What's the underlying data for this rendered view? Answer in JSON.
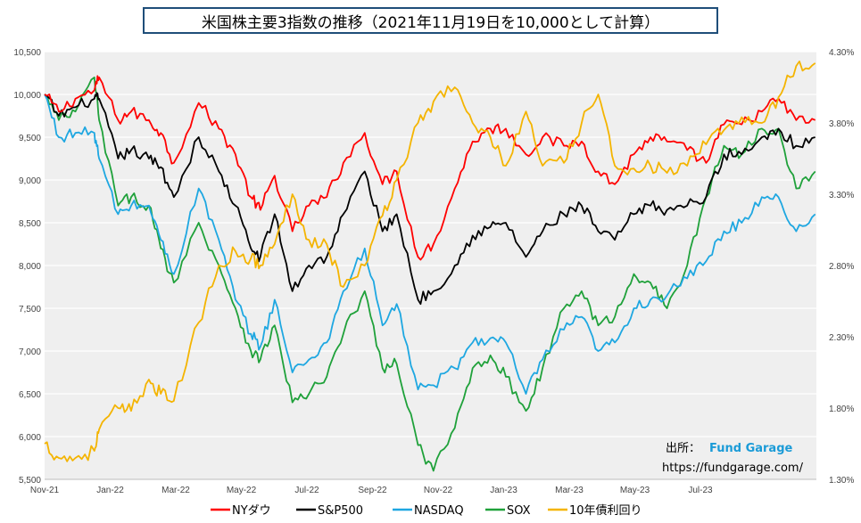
{
  "title": "米国株主要3指数の推移（2021年11月19日を10,000として計算）",
  "source": {
    "label": "出所：",
    "brand": "Fund Garage",
    "url": "https://fundgarage.com/"
  },
  "chart_data": {
    "type": "line",
    "x_tick_labels": [
      "Nov-21",
      "Jan-22",
      "Mar-22",
      "May-22",
      "Jul-22",
      "Sep-22",
      "Nov-22",
      "Jan-23",
      "Mar-23",
      "May-23",
      "Jul-23"
    ],
    "x_range": [
      "2021-11-19",
      "2023-09-01"
    ],
    "y_left": {
      "lim": [
        5500,
        10500
      ],
      "tick_labels": [
        "10,500",
        "10,000",
        "9,500",
        "9,000",
        "8,500",
        "8,000",
        "7,500",
        "7,000",
        "6,500",
        "6,000",
        "5,500"
      ]
    },
    "y_right": {
      "lim": [
        1.3,
        4.3
      ],
      "tick_labels": [
        "4.30%",
        "3.80%",
        "3.30%",
        "2.80%",
        "2.30%",
        "1.80%",
        "1.30%"
      ],
      "series": "10年債利回り"
    },
    "grid": "horizontal",
    "legend_position": "bottom",
    "series": [
      {
        "name": "NYダウ",
        "color": "#ff0000",
        "axis": "left",
        "points": [
          [
            "2021-11-19",
            10000
          ],
          [
            "2021-12-01",
            9800
          ],
          [
            "2021-12-15",
            9950
          ],
          [
            "2021-12-31",
            10050
          ],
          [
            "2022-01-04",
            10200
          ],
          [
            "2022-01-20",
            9700
          ],
          [
            "2022-01-31",
            9800
          ],
          [
            "2022-02-15",
            9700
          ],
          [
            "2022-02-25",
            9550
          ],
          [
            "2022-03-08",
            9200
          ],
          [
            "2022-03-29",
            9900
          ],
          [
            "2022-04-15",
            9600
          ],
          [
            "2022-04-29",
            9300
          ],
          [
            "2022-05-12",
            8800
          ],
          [
            "2022-05-20",
            8650
          ],
          [
            "2022-06-01",
            9050
          ],
          [
            "2022-06-16",
            8400
          ],
          [
            "2022-06-30",
            8700
          ],
          [
            "2022-07-15",
            8800
          ],
          [
            "2022-07-29",
            9200
          ],
          [
            "2022-08-16",
            9550
          ],
          [
            "2022-08-31",
            8950
          ],
          [
            "2022-09-12",
            9100
          ],
          [
            "2022-09-30",
            8100
          ],
          [
            "2022-10-13",
            8250
          ],
          [
            "2022-10-31",
            8900
          ],
          [
            "2022-11-15",
            9450
          ],
          [
            "2022-11-30",
            9600
          ],
          [
            "2022-12-13",
            9600
          ],
          [
            "2022-12-30",
            9300
          ],
          [
            "2023-01-13",
            9500
          ],
          [
            "2023-01-31",
            9400
          ],
          [
            "2023-02-15",
            9450
          ],
          [
            "2023-03-01",
            9100
          ],
          [
            "2023-03-15",
            8950
          ],
          [
            "2023-03-31",
            9300
          ],
          [
            "2023-04-14",
            9500
          ],
          [
            "2023-04-28",
            9450
          ],
          [
            "2023-05-15",
            9350
          ],
          [
            "2023-05-31",
            9200
          ],
          [
            "2023-06-15",
            9650
          ],
          [
            "2023-06-30",
            9650
          ],
          [
            "2023-07-17",
            9800
          ],
          [
            "2023-07-31",
            9950
          ],
          [
            "2023-08-15",
            9700
          ],
          [
            "2023-08-31",
            9700
          ]
        ]
      },
      {
        "name": "S&P500",
        "color": "#000000",
        "axis": "left",
        "points": [
          [
            "2021-11-19",
            10000
          ],
          [
            "2021-12-01",
            9750
          ],
          [
            "2021-12-15",
            9850
          ],
          [
            "2021-12-31",
            9950
          ],
          [
            "2022-01-04",
            9950
          ],
          [
            "2022-01-20",
            9250
          ],
          [
            "2022-01-31",
            9350
          ],
          [
            "2022-02-15",
            9250
          ],
          [
            "2022-02-25",
            9150
          ],
          [
            "2022-03-08",
            8800
          ],
          [
            "2022-03-29",
            9500
          ],
          [
            "2022-04-15",
            9100
          ],
          [
            "2022-04-29",
            8700
          ],
          [
            "2022-05-12",
            8200
          ],
          [
            "2022-05-20",
            8100
          ],
          [
            "2022-06-01",
            8600
          ],
          [
            "2022-06-16",
            7700
          ],
          [
            "2022-06-30",
            8000
          ],
          [
            "2022-07-15",
            8100
          ],
          [
            "2022-07-29",
            8600
          ],
          [
            "2022-08-16",
            9100
          ],
          [
            "2022-08-31",
            8400
          ],
          [
            "2022-09-12",
            8600
          ],
          [
            "2022-09-30",
            7600
          ],
          [
            "2022-10-13",
            7700
          ],
          [
            "2022-10-31",
            8000
          ],
          [
            "2022-11-15",
            8350
          ],
          [
            "2022-11-30",
            8450
          ],
          [
            "2022-12-13",
            8500
          ],
          [
            "2022-12-30",
            8100
          ],
          [
            "2023-01-13",
            8400
          ],
          [
            "2023-01-31",
            8600
          ],
          [
            "2023-02-15",
            8700
          ],
          [
            "2023-03-01",
            8400
          ],
          [
            "2023-03-15",
            8300
          ],
          [
            "2023-03-31",
            8600
          ],
          [
            "2023-04-14",
            8700
          ],
          [
            "2023-04-28",
            8650
          ],
          [
            "2023-05-15",
            8700
          ],
          [
            "2023-05-31",
            8800
          ],
          [
            "2023-06-15",
            9300
          ],
          [
            "2023-06-30",
            9300
          ],
          [
            "2023-07-17",
            9500
          ],
          [
            "2023-07-31",
            9600
          ],
          [
            "2023-08-15",
            9400
          ],
          [
            "2023-08-31",
            9500
          ]
        ]
      },
      {
        "name": "NASDAQ",
        "color": "#1ea7e1",
        "axis": "left",
        "points": [
          [
            "2021-11-19",
            10000
          ],
          [
            "2021-12-01",
            9500
          ],
          [
            "2021-12-15",
            9550
          ],
          [
            "2021-12-31",
            9550
          ],
          [
            "2022-01-04",
            9250
          ],
          [
            "2022-01-20",
            8600
          ],
          [
            "2022-01-31",
            8700
          ],
          [
            "2022-02-15",
            8700
          ],
          [
            "2022-02-25",
            8300
          ],
          [
            "2022-03-08",
            7900
          ],
          [
            "2022-03-29",
            8900
          ],
          [
            "2022-04-15",
            8300
          ],
          [
            "2022-04-29",
            7600
          ],
          [
            "2022-05-12",
            7200
          ],
          [
            "2022-05-20",
            7050
          ],
          [
            "2022-06-01",
            7600
          ],
          [
            "2022-06-16",
            6750
          ],
          [
            "2022-06-30",
            6900
          ],
          [
            "2022-07-15",
            7100
          ],
          [
            "2022-07-29",
            7700
          ],
          [
            "2022-08-16",
            8200
          ],
          [
            "2022-08-31",
            7300
          ],
          [
            "2022-09-12",
            7550
          ],
          [
            "2022-09-30",
            6550
          ],
          [
            "2022-10-13",
            6600
          ],
          [
            "2022-10-31",
            6800
          ],
          [
            "2022-11-15",
            7100
          ],
          [
            "2022-11-30",
            7150
          ],
          [
            "2022-12-13",
            7100
          ],
          [
            "2022-12-30",
            6500
          ],
          [
            "2023-01-13",
            6900
          ],
          [
            "2023-01-31",
            7250
          ],
          [
            "2023-02-15",
            7400
          ],
          [
            "2023-03-01",
            7000
          ],
          [
            "2023-03-15",
            7100
          ],
          [
            "2023-03-31",
            7500
          ],
          [
            "2023-04-14",
            7600
          ],
          [
            "2023-04-28",
            7650
          ],
          [
            "2023-05-15",
            7850
          ],
          [
            "2023-05-31",
            8050
          ],
          [
            "2023-06-15",
            8400
          ],
          [
            "2023-06-30",
            8500
          ],
          [
            "2023-07-17",
            8800
          ],
          [
            "2023-07-31",
            8800
          ],
          [
            "2023-08-15",
            8400
          ],
          [
            "2023-08-31",
            8600
          ]
        ]
      },
      {
        "name": "SOX",
        "color": "#1fa13a",
        "axis": "left",
        "points": [
          [
            "2021-11-19",
            10000
          ],
          [
            "2021-12-01",
            9700
          ],
          [
            "2021-12-15",
            9800
          ],
          [
            "2021-12-31",
            10200
          ],
          [
            "2022-01-04",
            9700
          ],
          [
            "2022-01-20",
            8700
          ],
          [
            "2022-01-31",
            8800
          ],
          [
            "2022-02-15",
            8700
          ],
          [
            "2022-02-25",
            8200
          ],
          [
            "2022-03-08",
            7800
          ],
          [
            "2022-03-29",
            8500
          ],
          [
            "2022-04-15",
            8000
          ],
          [
            "2022-04-29",
            7500
          ],
          [
            "2022-05-12",
            7000
          ],
          [
            "2022-05-20",
            6900
          ],
          [
            "2022-06-01",
            7300
          ],
          [
            "2022-06-16",
            6400
          ],
          [
            "2022-06-30",
            6500
          ],
          [
            "2022-07-15",
            6700
          ],
          [
            "2022-07-29",
            7200
          ],
          [
            "2022-08-16",
            7700
          ],
          [
            "2022-08-31",
            6800
          ],
          [
            "2022-09-12",
            6850
          ],
          [
            "2022-09-30",
            5900
          ],
          [
            "2022-10-13",
            5600
          ],
          [
            "2022-10-31",
            6100
          ],
          [
            "2022-11-15",
            6800
          ],
          [
            "2022-11-30",
            6950
          ],
          [
            "2022-12-13",
            6700
          ],
          [
            "2022-12-30",
            6300
          ],
          [
            "2023-01-13",
            6800
          ],
          [
            "2023-01-31",
            7500
          ],
          [
            "2023-02-15",
            7700
          ],
          [
            "2023-03-01",
            7300
          ],
          [
            "2023-03-15",
            7400
          ],
          [
            "2023-03-31",
            7900
          ],
          [
            "2023-04-14",
            7800
          ],
          [
            "2023-04-28",
            7500
          ],
          [
            "2023-05-15",
            8000
          ],
          [
            "2023-05-31",
            8800
          ],
          [
            "2023-06-15",
            9400
          ],
          [
            "2023-06-30",
            9300
          ],
          [
            "2023-07-17",
            9600
          ],
          [
            "2023-07-31",
            9600
          ],
          [
            "2023-08-15",
            8900
          ],
          [
            "2023-08-31",
            9100
          ]
        ]
      },
      {
        "name": "10年債利回り",
        "color": "#f4b400",
        "axis": "right",
        "points": [
          [
            "2021-11-19",
            1.55
          ],
          [
            "2021-12-01",
            1.45
          ],
          [
            "2021-12-15",
            1.45
          ],
          [
            "2021-12-31",
            1.5
          ],
          [
            "2022-01-04",
            1.65
          ],
          [
            "2022-01-20",
            1.8
          ],
          [
            "2022-01-31",
            1.78
          ],
          [
            "2022-02-15",
            2.0
          ],
          [
            "2022-02-25",
            1.9
          ],
          [
            "2022-03-08",
            1.85
          ],
          [
            "2022-03-29",
            2.4
          ],
          [
            "2022-04-15",
            2.8
          ],
          [
            "2022-04-29",
            2.9
          ],
          [
            "2022-05-12",
            2.85
          ],
          [
            "2022-05-20",
            2.8
          ],
          [
            "2022-06-01",
            2.95
          ],
          [
            "2022-06-16",
            3.3
          ],
          [
            "2022-06-30",
            2.98
          ],
          [
            "2022-07-15",
            2.95
          ],
          [
            "2022-07-29",
            2.65
          ],
          [
            "2022-08-16",
            2.8
          ],
          [
            "2022-08-31",
            3.15
          ],
          [
            "2022-09-12",
            3.4
          ],
          [
            "2022-09-30",
            3.8
          ],
          [
            "2022-10-13",
            3.95
          ],
          [
            "2022-10-31",
            4.05
          ],
          [
            "2022-11-15",
            3.8
          ],
          [
            "2022-11-30",
            3.7
          ],
          [
            "2022-12-13",
            3.5
          ],
          [
            "2022-12-30",
            3.88
          ],
          [
            "2023-01-13",
            3.5
          ],
          [
            "2023-01-31",
            3.52
          ],
          [
            "2023-02-15",
            3.8
          ],
          [
            "2023-03-01",
            4.0
          ],
          [
            "2023-03-15",
            3.5
          ],
          [
            "2023-03-31",
            3.48
          ],
          [
            "2023-04-14",
            3.5
          ],
          [
            "2023-04-28",
            3.45
          ],
          [
            "2023-05-15",
            3.5
          ],
          [
            "2023-05-31",
            3.65
          ],
          [
            "2023-06-15",
            3.75
          ],
          [
            "2023-06-30",
            3.84
          ],
          [
            "2023-07-17",
            3.8
          ],
          [
            "2023-07-31",
            3.98
          ],
          [
            "2023-08-15",
            4.2
          ],
          [
            "2023-08-31",
            4.22
          ]
        ]
      }
    ]
  }
}
